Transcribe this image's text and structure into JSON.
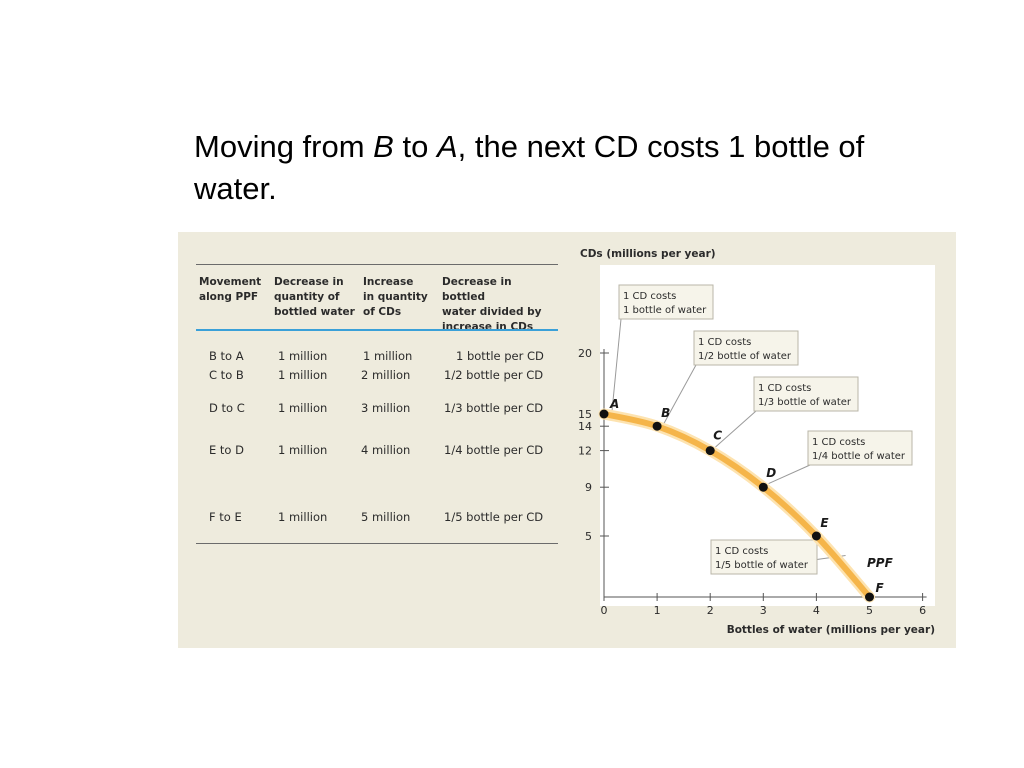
{
  "slide": {
    "title_part1": "Moving from ",
    "title_b": "B",
    "title_part2": " to ",
    "title_a": "A",
    "title_part3": ", the next CD costs 1 bottle of water."
  },
  "table": {
    "headers": [
      "Movement\nalong PPF",
      "Decrease in\nquantity of\nbottled water",
      "Increase\nin quantity\nof CDs",
      "Decrease in bottled\nwater divided by\nincrease in CDs"
    ],
    "rows": [
      {
        "move": "B to A",
        "decrease": "1 million",
        "increase": "1 million",
        "ratio": "1 bottle per CD"
      },
      {
        "move": "C to B",
        "decrease": "1 million",
        "increase": "2 million",
        "ratio": "1/2 bottle per CD"
      },
      {
        "move": "D to C",
        "decrease": "1 million",
        "increase": "3 million",
        "ratio": "1/3 bottle per CD"
      },
      {
        "move": "E to D",
        "decrease": "1 million",
        "increase": "4 million",
        "ratio": "1/4 bottle per CD"
      },
      {
        "move": "F to E",
        "decrease": "1 million",
        "increase": "5 million",
        "ratio": "1/5 bottle per CD"
      }
    ]
  },
  "chart_data": {
    "type": "line",
    "title": "",
    "ylabel": "CDs (millions per year)",
    "xlabel": "Bottles of water (millions per year)",
    "xlim": [
      0,
      6
    ],
    "ylim": [
      0,
      20
    ],
    "x_ticks": [
      0,
      1,
      2,
      3,
      4,
      5,
      6
    ],
    "y_ticks": [
      5,
      9,
      12,
      14,
      15,
      20
    ],
    "curve_label": "PPF",
    "points": [
      {
        "label": "A",
        "x": 0,
        "y": 15
      },
      {
        "label": "B",
        "x": 1,
        "y": 14
      },
      {
        "label": "C",
        "x": 2,
        "y": 12
      },
      {
        "label": "D",
        "x": 3,
        "y": 9
      },
      {
        "label": "E",
        "x": 4,
        "y": 5
      },
      {
        "label": "F",
        "x": 5,
        "y": 0
      }
    ],
    "annotations": [
      {
        "line1": "1 CD costs",
        "line2": "1 bottle of water"
      },
      {
        "line1": "1 CD costs",
        "line2": "1/2 bottle of water"
      },
      {
        "line1": "1 CD costs",
        "line2": "1/3 bottle of water"
      },
      {
        "line1": "1 CD costs",
        "line2": "1/4 bottle of water"
      },
      {
        "line1": "1 CD costs",
        "line2": "1/5 bottle of water"
      }
    ],
    "colors": {
      "curve": "#f5b54a",
      "curve_edge": "#fde3b0",
      "point": "#111111",
      "axis": "#555555"
    }
  }
}
